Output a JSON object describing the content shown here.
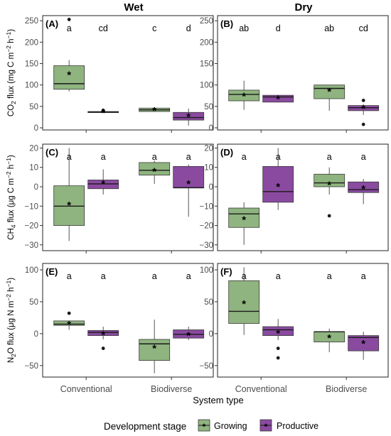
{
  "figure": {
    "column_titles": [
      "Wet",
      "Dry"
    ],
    "xlabel": "System type",
    "legend": {
      "title": "Development stage",
      "entries": [
        {
          "name": "Growing",
          "color": "#8fb47f"
        },
        {
          "name": "Productive",
          "color": "#8a4aa0"
        }
      ]
    }
  },
  "chart_data": [
    {
      "type": "box",
      "panel": "(A)",
      "column": "Wet",
      "ylabel": {
        "pre": "CO",
        "sub": "2",
        "mid": " flux (mg C m",
        "sup1": "−2",
        "mid2": " h",
        "sup2": "−1",
        "post": ")"
      },
      "ylim": [
        -5,
        262
      ],
      "yticks": [
        0,
        50,
        100,
        150,
        200,
        250
      ],
      "categories": [
        "Conventional",
        "Biodiverse"
      ],
      "series": [
        {
          "name": "Growing",
          "boxes": [
            {
              "category": "Conventional",
              "min": 85,
              "q1": 90,
              "median": 103,
              "q3": 145,
              "max": 158,
              "mean": 126,
              "outliers": [
                253
              ],
              "letter": "a"
            },
            {
              "category": "Biodiverse",
              "min": 38,
              "q1": 38,
              "median": 42,
              "q3": 46,
              "max": 48,
              "mean": 42,
              "outliers": [],
              "letter": "c"
            }
          ]
        },
        {
          "name": "Productive",
          "boxes": [
            {
              "category": "Conventional",
              "min": 36,
              "q1": 36,
              "median": 37,
              "q3": 38,
              "max": 38,
              "mean": 37,
              "outliers": [
                41
              ],
              "letter": "cd"
            },
            {
              "category": "Biodiverse",
              "min": 5,
              "q1": 18,
              "median": 24,
              "q3": 36,
              "max": 45,
              "mean": 28,
              "outliers": [],
              "letter": "d"
            }
          ]
        }
      ]
    },
    {
      "type": "box",
      "panel": "(B)",
      "column": "Dry",
      "ylim": [
        -5,
        262
      ],
      "yticks": [
        0,
        50,
        100,
        150,
        200,
        250
      ],
      "categories": [
        "Conventional",
        "Biodiverse"
      ],
      "series": [
        {
          "name": "Growing",
          "boxes": [
            {
              "category": "Conventional",
              "min": 42,
              "q1": 63,
              "median": 78,
              "q3": 88,
              "max": 110,
              "mean": 76,
              "outliers": [],
              "letter": "ab"
            },
            {
              "category": "Biodiverse",
              "min": 40,
              "q1": 68,
              "median": 92,
              "q3": 100,
              "max": 100,
              "mean": 87,
              "outliers": [],
              "letter": "ab"
            }
          ]
        },
        {
          "name": "Productive",
          "boxes": [
            {
              "category": "Conventional",
              "min": 60,
              "q1": 60,
              "median": 72,
              "q3": 76,
              "max": 76,
              "mean": 70,
              "outliers": [],
              "letter": "d"
            },
            {
              "category": "Biodiverse",
              "min": 30,
              "q1": 40,
              "median": 47,
              "q3": 52,
              "max": 55,
              "mean": 47,
              "outliers": [
                64,
                8
              ],
              "letter": "cd"
            }
          ]
        }
      ]
    },
    {
      "type": "box",
      "panel": "(C)",
      "column": "Wet",
      "ylabel": {
        "pre": "CH",
        "sub": "4",
        "mid": " flux (μg C m",
        "sup1": "−2",
        "mid2": " h",
        "sup2": "−1",
        "post": ")"
      },
      "ylim": [
        -33,
        22
      ],
      "yticks": [
        -30,
        -20,
        -10,
        0,
        10,
        20
      ],
      "categories": [
        "Conventional",
        "Biodiverse"
      ],
      "series": [
        {
          "name": "Growing",
          "boxes": [
            {
              "category": "Conventional",
              "min": -28,
              "q1": -20,
              "median": -10,
              "q3": 0.5,
              "max": 20,
              "mean": -9,
              "outliers": [],
              "letter": "a"
            },
            {
              "category": "Biodiverse",
              "min": 1.5,
              "q1": 6,
              "median": 8.5,
              "q3": 12.5,
              "max": 13.5,
              "mean": 8.5,
              "outliers": [],
              "letter": "a"
            }
          ]
        },
        {
          "name": "Productive",
          "boxes": [
            {
              "category": "Conventional",
              "min": -4,
              "q1": -1,
              "median": 1.5,
              "q3": 3.5,
              "max": 9,
              "mean": 2,
              "outliers": [],
              "letter": "a"
            },
            {
              "category": "Biodiverse",
              "min": -15.5,
              "q1": -0.5,
              "median": -0.5,
              "q3": 10.5,
              "max": 11.5,
              "mean": 2,
              "outliers": [],
              "letter": "a"
            }
          ]
        }
      ]
    },
    {
      "type": "box",
      "panel": "(D)",
      "column": "Dry",
      "ylim": [
        -33,
        22
      ],
      "yticks": [
        -30,
        -20,
        -10,
        0,
        10,
        20
      ],
      "categories": [
        "Conventional",
        "Biodiverse"
      ],
      "series": [
        {
          "name": "Growing",
          "boxes": [
            {
              "category": "Conventional",
              "min": -30,
              "q1": -21,
              "median": -14,
              "q3": -11,
              "max": -8,
              "mean": -16.5,
              "outliers": [],
              "letter": "a"
            },
            {
              "category": "Biodiverse",
              "min": -4,
              "q1": 0,
              "median": 2,
              "q3": 6.5,
              "max": 10,
              "mean": 1.5,
              "outliers": [
                -15
              ],
              "letter": "a"
            }
          ]
        },
        {
          "name": "Productive",
          "boxes": [
            {
              "category": "Conventional",
              "min": -12,
              "q1": -8,
              "median": -2.5,
              "q3": 10.5,
              "max": 20,
              "mean": 0.5,
              "outliers": [],
              "letter": "a"
            },
            {
              "category": "Biodiverse",
              "min": -9,
              "q1": -3,
              "median": -1.5,
              "q3": 2.5,
              "max": 4,
              "mean": -0.5,
              "outliers": [],
              "letter": "a"
            }
          ]
        }
      ]
    },
    {
      "type": "box",
      "panel": "(E)",
      "column": "Wet",
      "ylabel": {
        "pre": "N",
        "sub": "2",
        "mid": "O flux (μg N m",
        "sup1": "−2",
        "mid2": " h",
        "sup2": "−1",
        "post": ")"
      },
      "ylim": [
        -68,
        110
      ],
      "yticks": [
        -50,
        0,
        50,
        100
      ],
      "categories": [
        "Conventional",
        "Biodiverse"
      ],
      "series": [
        {
          "name": "Growing",
          "boxes": [
            {
              "category": "Conventional",
              "min": 6,
              "q1": 13,
              "median": 15,
              "q3": 20,
              "max": 20,
              "mean": 16,
              "outliers": [
                32
              ],
              "letter": "a"
            },
            {
              "category": "Biodiverse",
              "min": -62,
              "q1": -42,
              "median": -16,
              "q3": -9,
              "max": 22,
              "mean": -21,
              "outliers": [],
              "letter": "a"
            }
          ]
        },
        {
          "name": "Productive",
          "boxes": [
            {
              "category": "Conventional",
              "min": -9,
              "q1": -3,
              "median": 2,
              "q3": 5,
              "max": 11,
              "mean": 0,
              "outliers": [
                -23
              ],
              "letter": "a"
            },
            {
              "category": "Biodiverse",
              "min": -10,
              "q1": -7,
              "median": -1,
              "q3": 6,
              "max": 11,
              "mean": -1,
              "outliers": [],
              "letter": "a"
            }
          ]
        }
      ]
    },
    {
      "type": "box",
      "panel": "(F)",
      "column": "Dry",
      "ylim": [
        -68,
        110
      ],
      "yticks": [
        -50,
        0,
        50,
        100
      ],
      "categories": [
        "Conventional",
        "Biodiverse"
      ],
      "series": [
        {
          "name": "Growing",
          "boxes": [
            {
              "category": "Conventional",
              "min": -2,
              "q1": 16,
              "median": 35,
              "q3": 83,
              "max": 104,
              "mean": 48,
              "outliers": [],
              "letter": "a"
            },
            {
              "category": "Biodiverse",
              "min": -29,
              "q1": -13,
              "median": 3,
              "q3": 3,
              "max": 8,
              "mean": -5,
              "outliers": [],
              "letter": "a"
            }
          ]
        },
        {
          "name": "Productive",
          "boxes": [
            {
              "category": "Conventional",
              "min": -10,
              "q1": -3,
              "median": 6,
              "q3": 11,
              "max": 23,
              "mean": 2,
              "outliers": [
                -23,
                -38
              ],
              "letter": "a"
            },
            {
              "category": "Biodiverse",
              "min": -41,
              "q1": -27,
              "median": -6,
              "q3": -3,
              "max": 3,
              "mean": -14,
              "outliers": [],
              "letter": "a"
            }
          ]
        }
      ]
    }
  ]
}
